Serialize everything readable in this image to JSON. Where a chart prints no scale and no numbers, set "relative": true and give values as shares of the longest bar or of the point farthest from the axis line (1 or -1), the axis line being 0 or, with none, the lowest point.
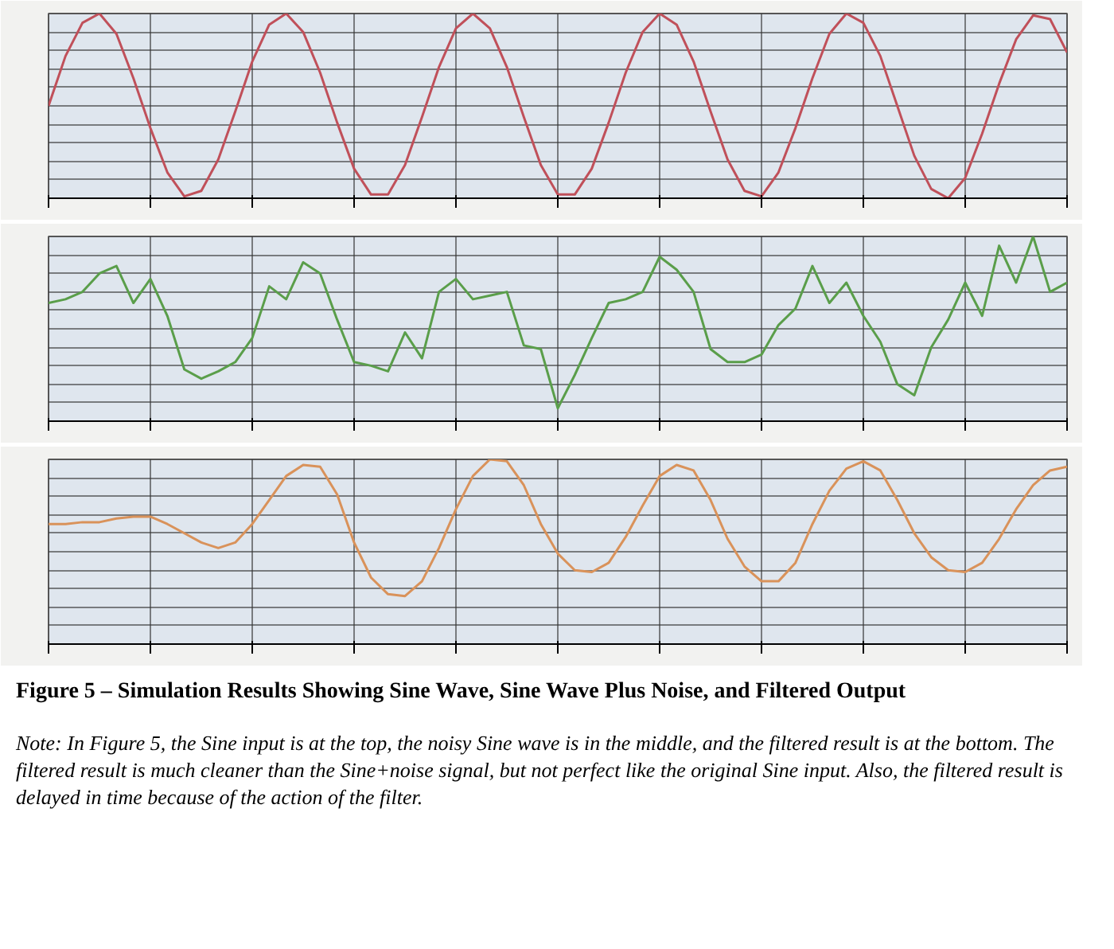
{
  "chart_data": [
    {
      "type": "line",
      "relative": true,
      "grid": true,
      "categories": [
        null,
        null,
        null,
        null,
        null,
        null,
        null,
        null,
        null,
        null,
        null,
        null,
        null,
        null,
        null,
        null,
        null,
        null,
        null,
        null,
        null,
        null,
        null,
        null,
        null,
        null,
        null,
        null,
        null,
        null,
        null,
        null,
        null,
        null,
        null,
        null,
        null,
        null,
        null,
        null,
        null,
        null,
        null,
        null,
        null,
        null,
        null,
        null,
        null,
        null,
        null,
        null,
        null,
        null,
        null,
        null,
        null,
        null,
        null,
        null,
        null
      ],
      "series": [
        {
          "color": "#c0505a",
          "values": [
            0.5,
            0.77,
            0.95,
            1.0,
            0.89,
            0.65,
            0.38,
            0.14,
            0.01,
            0.04,
            0.21,
            0.47,
            0.74,
            0.94,
            1.0,
            0.9,
            0.68,
            0.41,
            0.16,
            0.02,
            0.02,
            0.18,
            0.44,
            0.71,
            0.92,
            1.0,
            0.92,
            0.71,
            0.44,
            0.18,
            0.02,
            0.02,
            0.16,
            0.41,
            0.68,
            0.9,
            1.0,
            0.94,
            0.74,
            0.47,
            0.21,
            0.04,
            0.01,
            0.14,
            0.38,
            0.65,
            0.89,
            1.0,
            0.95,
            0.77,
            0.5,
            0.23,
            0.05,
            0.0,
            0.11,
            0.35,
            0.62,
            0.86,
            0.99,
            0.97,
            0.79
          ]
        }
      ]
    },
    {
      "type": "line",
      "relative": true,
      "grid": true,
      "categories": [
        null,
        null,
        null,
        null,
        null,
        null,
        null,
        null,
        null,
        null,
        null,
        null,
        null,
        null,
        null,
        null,
        null,
        null,
        null,
        null,
        null,
        null,
        null,
        null,
        null,
        null,
        null,
        null,
        null,
        null,
        null,
        null,
        null,
        null,
        null,
        null,
        null,
        null,
        null,
        null,
        null,
        null,
        null,
        null,
        null,
        null,
        null,
        null,
        null,
        null,
        null,
        null,
        null,
        null,
        null,
        null,
        null,
        null,
        null,
        null,
        null
      ],
      "series": [
        {
          "color": "#5a9e4a",
          "values": [
            0.64,
            0.66,
            0.7,
            0.8,
            0.84,
            0.64,
            0.77,
            0.57,
            0.28,
            0.23,
            0.27,
            0.32,
            0.45,
            0.73,
            0.66,
            0.86,
            0.8,
            0.55,
            0.32,
            0.3,
            0.27,
            0.48,
            0.34,
            0.7,
            0.77,
            0.66,
            0.68,
            0.7,
            0.41,
            0.39,
            0.07,
            0.25,
            0.45,
            0.64,
            0.66,
            0.7,
            0.89,
            0.82,
            0.7,
            0.39,
            0.32,
            0.32,
            0.36,
            0.52,
            0.61,
            0.84,
            0.64,
            0.75,
            0.57,
            0.43,
            0.2,
            0.14,
            0.4,
            0.55,
            0.75,
            0.57,
            0.95,
            0.75,
            1.0,
            0.7,
            0.75
          ]
        }
      ]
    },
    {
      "type": "line",
      "relative": true,
      "grid": true,
      "categories": [
        null,
        null,
        null,
        null,
        null,
        null,
        null,
        null,
        null,
        null,
        null,
        null,
        null,
        null,
        null,
        null,
        null,
        null,
        null,
        null,
        null,
        null,
        null,
        null,
        null,
        null,
        null,
        null,
        null,
        null,
        null,
        null,
        null,
        null,
        null,
        null,
        null,
        null,
        null,
        null,
        null,
        null,
        null,
        null,
        null,
        null,
        null,
        null,
        null,
        null,
        null,
        null,
        null,
        null,
        null,
        null,
        null,
        null,
        null,
        null,
        null
      ],
      "series": [
        {
          "color": "#d9925a",
          "values": [
            0.65,
            0.65,
            0.66,
            0.66,
            0.68,
            0.69,
            0.69,
            0.65,
            0.6,
            0.55,
            0.52,
            0.55,
            0.65,
            0.78,
            0.91,
            0.97,
            0.96,
            0.81,
            0.55,
            0.36,
            0.27,
            0.26,
            0.34,
            0.52,
            0.73,
            0.91,
            1.0,
            0.99,
            0.86,
            0.65,
            0.49,
            0.4,
            0.39,
            0.44,
            0.58,
            0.75,
            0.91,
            0.97,
            0.94,
            0.78,
            0.57,
            0.42,
            0.34,
            0.34,
            0.44,
            0.65,
            0.83,
            0.95,
            0.99,
            0.94,
            0.78,
            0.6,
            0.47,
            0.4,
            0.39,
            0.44,
            0.57,
            0.73,
            0.86,
            0.94,
            0.96
          ]
        }
      ]
    },
    {
      "type": "other",
      "title": "Figure 5 – Simulation Results Showing Sine Wave, Sine Wave Plus Noise, and Filtered Output",
      "annotations": [
        "Note: In Figure 5, the Sine input is at the top, the noisy Sine wave is in the middle, and the filtered result is at the bottom. The filtered result is much cleaner than the Sine+noise signal, but not perfect like the original Sine input. Also, the filtered result is delayed in time because of the action of the filter."
      ]
    }
  ]
}
